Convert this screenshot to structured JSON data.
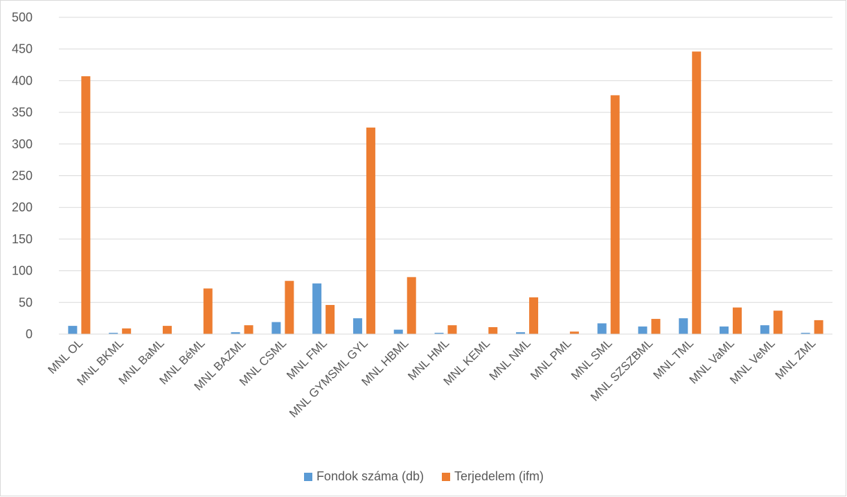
{
  "chart_data": {
    "type": "bar",
    "title": "",
    "xlabel": "",
    "ylabel": "",
    "ylim": [
      0,
      500
    ],
    "yticks": [
      0,
      50,
      100,
      150,
      200,
      250,
      300,
      350,
      400,
      450,
      500
    ],
    "grid": true,
    "legend_position": "bottom",
    "categories": [
      "MNL OL",
      "MNL BKML",
      "MNL BaML",
      "MNL BéML",
      "MNL BAZML",
      "MNL CSML",
      "MNL FML",
      "MNL GYMSML GYL",
      "MNL HBML",
      "MNL HML",
      "MNL KEML",
      "MNL NML",
      "MNL PML",
      "MNL SML",
      "MNL SZSZBML",
      "MNL TML",
      "MNL VaML",
      "MNL VeML",
      "MNL ZML"
    ],
    "series": [
      {
        "name": "Fondok  száma (db)",
        "color": "#5b9bd5",
        "values": [
          13,
          2,
          0,
          0,
          3,
          19,
          80,
          25,
          7,
          2,
          0,
          3,
          0,
          17,
          12,
          25,
          12,
          14,
          2
        ]
      },
      {
        "name": "Terjedelem (ifm)",
        "color": "#ed7d31",
        "values": [
          407,
          9,
          13,
          72,
          14,
          84,
          46,
          326,
          90,
          14,
          11,
          58,
          4,
          377,
          24,
          446,
          42,
          37,
          22
        ]
      }
    ]
  }
}
